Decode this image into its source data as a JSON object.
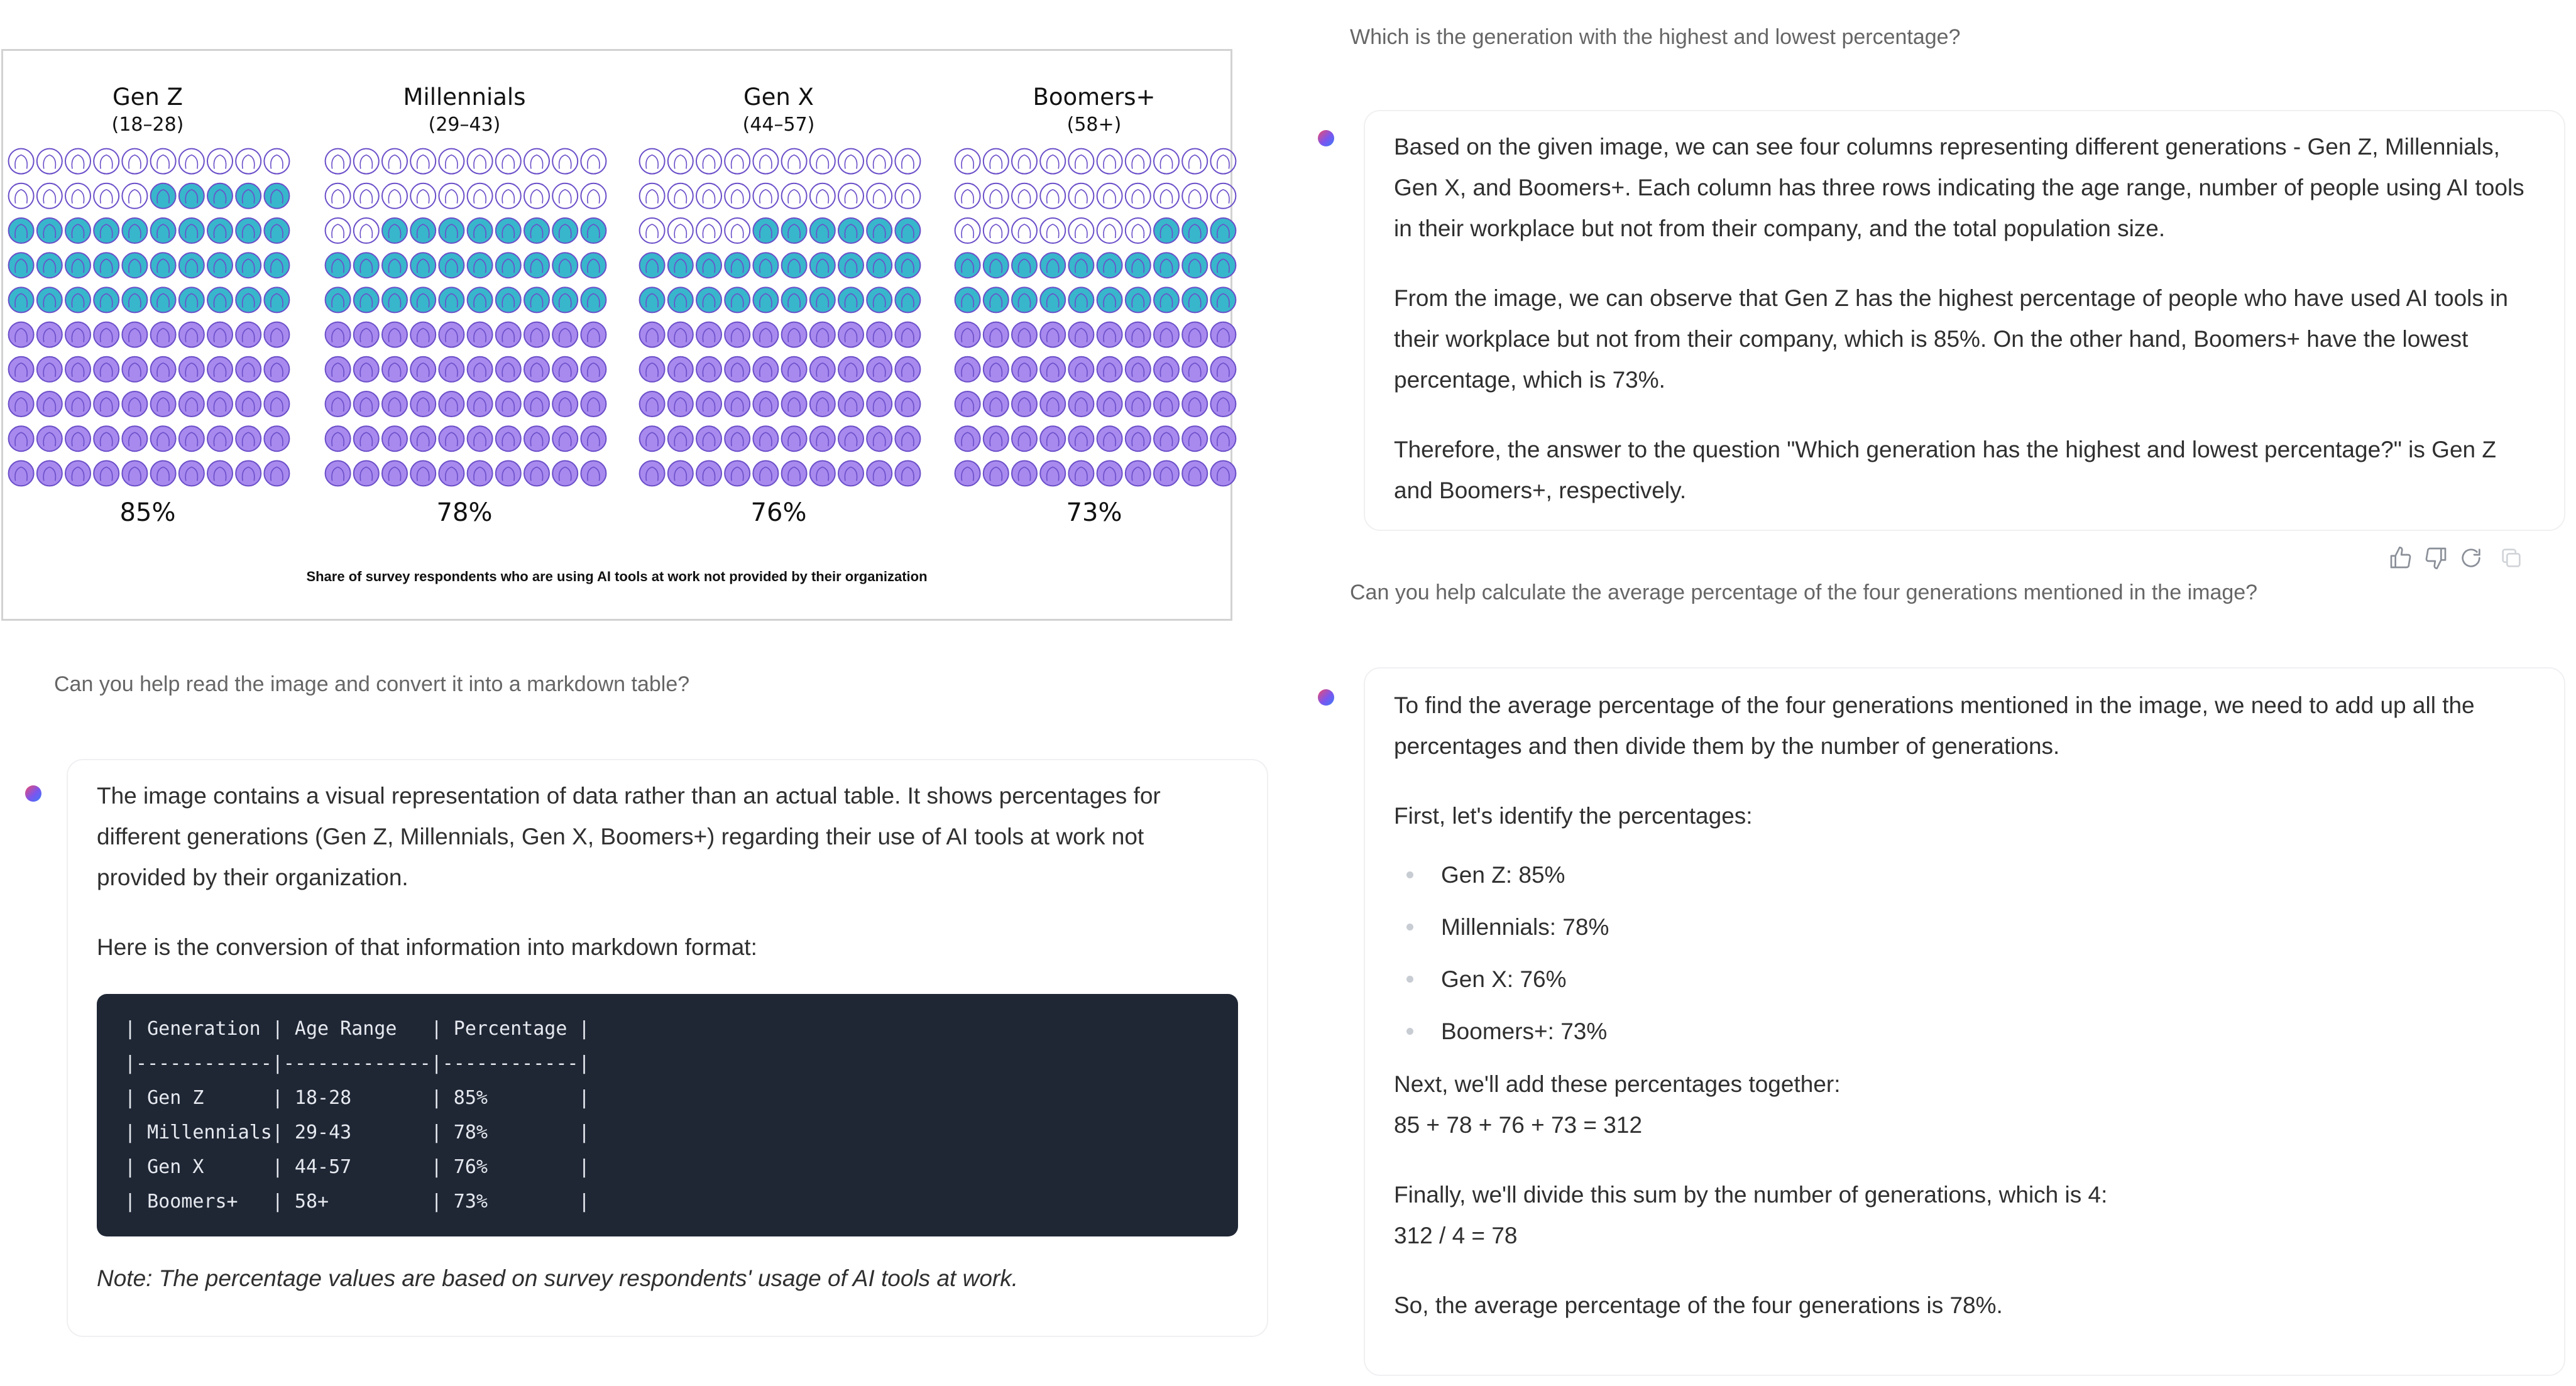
{
  "infographic": {
    "caption": "Share of survey respondents who are using AI tools at work not provided by their organization",
    "generations": [
      {
        "name": "Gen Z",
        "age": "(18–28)",
        "percent_label": "85%",
        "percent": 85
      },
      {
        "name": "Millennials",
        "age": "(29–43)",
        "percent_label": "78%",
        "percent": 78
      },
      {
        "name": "Gen X",
        "age": "(44–57)",
        "percent_label": "76%",
        "percent": 76
      },
      {
        "name": "Boomers+",
        "age": "(58+)",
        "percent_label": "73%",
        "percent": 73
      }
    ],
    "colors": {
      "teal": "#38b6cc",
      "purple": "#a889ee",
      "outline": "#6b4fc9"
    }
  },
  "chat": {
    "q1": "Which is the generation with the highest and lowest percentage?",
    "a1": [
      "Based on the given image, we can see four columns representing different generations - Gen Z, Millennials, Gen X, and Boomers+. Each column has three rows indicating the age range, number of people using AI tools in their workplace but not from their company, and the total population size.",
      "From the image, we can observe that Gen Z has the highest percentage of people who have used AI tools in their workplace but not from their company, which is 85%. On the other hand, Boomers+ have the lowest percentage, which is 73%.",
      "Therefore, the answer to the question \"Which generation has the highest and lowest percentage?\" is Gen Z and Boomers+, respectively."
    ],
    "q2": "Can you help calculate the average percentage of the four generations mentioned in the image?",
    "a2": {
      "intro": "To find the average percentage of the four generations mentioned in the image, we need to add up all the percentages and then divide them by the number of generations.",
      "identify": "First, let's identify the percentages:",
      "bullets": [
        "Gen Z: 85%",
        "Millennials: 78%",
        "Gen X: 76%",
        "Boomers+: 73%"
      ],
      "add_text": "Next, we'll add these percentages together:",
      "add_eq": "85 + 78 + 76 + 73 = 312",
      "div_text": "Finally, we'll divide this sum by the number of generations, which is 4:",
      "div_eq": "312 / 4 = 78",
      "result": "So, the average percentage of the four generations is 78%."
    },
    "q3": "Can you help read the image and convert it into a markdown table?",
    "a3": {
      "intro": "The image contains a visual representation of data rather than an actual table. It shows percentages for different generations (Gen Z, Millennials, Gen X, Boomers+) regarding their use of AI tools at work not provided by their organization.",
      "conversion": "Here is the conversion of that information into markdown format:",
      "code_lines": [
        "| Generation | Age Range   | Percentage |",
        "|------------|-------------|------------|",
        "| Gen Z      | 18-28       | 85%        |",
        "| Millennials| 29-43       | 78%        |",
        "| Gen X      | 44-57       | 76%        |",
        "| Boomers+   | 58+         | 73%        |"
      ],
      "note": "Note: The percentage values are based on survey respondents' usage of AI tools at work."
    },
    "action_icons": [
      "thumbs-up-icon",
      "thumbs-down-icon",
      "regenerate-icon",
      "copy-icon"
    ]
  }
}
